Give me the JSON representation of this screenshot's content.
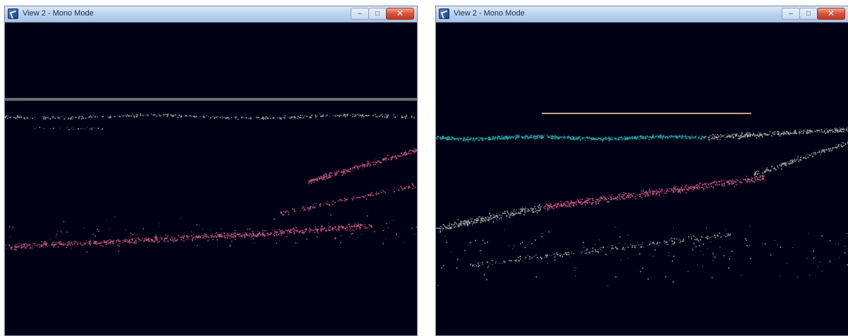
{
  "windows": [
    {
      "title": "View 2 - Mono Mode",
      "controls": {
        "minimize": "–",
        "maximize": "□",
        "close": "✕"
      },
      "icon": "app-icon"
    },
    {
      "title": "View 2 - Mono Mode",
      "controls": {
        "minimize": "–",
        "maximize": "□",
        "close": "✕"
      },
      "icon": "app-icon"
    }
  ],
  "colors": {
    "background": "#000015",
    "pink": "#c8587f",
    "gray": "#a7a79d",
    "teal": "#1fa7a3",
    "separator": "#6c6c6c",
    "marker": "#c8a78a"
  }
}
